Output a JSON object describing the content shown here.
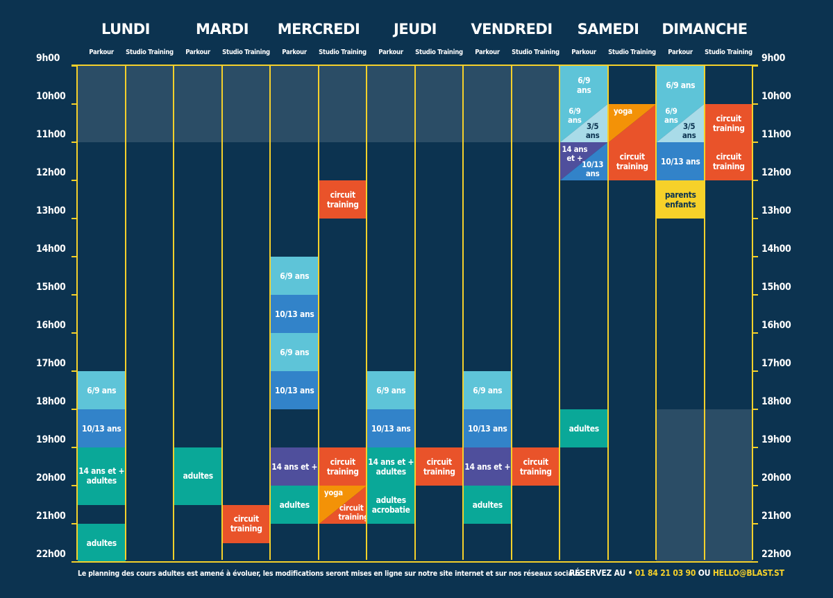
{
  "days": [
    "LUNDI",
    "MARDI",
    "MERCREDI",
    "JEUDI",
    "VENDREDI",
    "SAMEDI",
    "DIMANCHE"
  ],
  "sub_columns": [
    "Parkour",
    "Studio Training"
  ],
  "hours": [
    "9h00",
    "10h00",
    "11h00",
    "12h00",
    "13h00",
    "14h00",
    "15h00",
    "16h00",
    "17h00",
    "18h00",
    "19h00",
    "20h00",
    "21h00",
    "22h00"
  ],
  "colors": {
    "background": "#0c3350",
    "grid": "#f6d12a",
    "light_blue": "#5ec4d8",
    "mid_blue": "#3283c9",
    "purple": "#4f4f9c",
    "teal": "#0aa898",
    "orange_red": "#e9532a",
    "orange": "#f39207",
    "yellow": "#f6d12a"
  },
  "blocks": [
    {
      "col": 0,
      "start": 17,
      "end": 18,
      "label": "6/9 ans",
      "color": "light_blue"
    },
    {
      "col": 0,
      "start": 18,
      "end": 19,
      "label": "10/13 ans",
      "color": "mid_blue"
    },
    {
      "col": 0,
      "start": 19,
      "end": 20.5,
      "label": "14 ans et +\nadultes",
      "color": "teal"
    },
    {
      "col": 0,
      "start": 21,
      "end": 22,
      "label": "adultes",
      "color": "teal"
    },
    {
      "col": 2,
      "start": 19,
      "end": 20.5,
      "label": "adultes",
      "color": "teal"
    },
    {
      "col": 3,
      "start": 20.5,
      "end": 21.5,
      "label": "circuit\ntraining",
      "color": "orange_red"
    },
    {
      "col": 4,
      "start": 14,
      "end": 15,
      "label": "6/9 ans",
      "color": "light_blue"
    },
    {
      "col": 4,
      "start": 15,
      "end": 16,
      "label": "10/13 ans",
      "color": "mid_blue"
    },
    {
      "col": 4,
      "start": 16,
      "end": 17,
      "label": "6/9 ans",
      "color": "light_blue"
    },
    {
      "col": 4,
      "start": 17,
      "end": 18,
      "label": "10/13 ans",
      "color": "mid_blue"
    },
    {
      "col": 4,
      "start": 19,
      "end": 20,
      "label": "14 ans et +",
      "color": "purple"
    },
    {
      "col": 4,
      "start": 20,
      "end": 21,
      "label": "adultes",
      "color": "teal"
    },
    {
      "col": 5,
      "start": 12,
      "end": 13,
      "label": "circuit\ntraining",
      "color": "orange_red"
    },
    {
      "col": 5,
      "start": 19,
      "end": 20,
      "label": "circuit\ntraining",
      "color": "orange_red"
    },
    {
      "col": 6,
      "start": 17,
      "end": 18,
      "label": "6/9 ans",
      "color": "light_blue"
    },
    {
      "col": 6,
      "start": 18,
      "end": 19,
      "label": "10/13 ans",
      "color": "mid_blue"
    },
    {
      "col": 6,
      "start": 19,
      "end": 20,
      "label": "14 ans et +\nadultes",
      "color": "teal"
    },
    {
      "col": 6,
      "start": 20,
      "end": 21,
      "label": "adultes\nacrobatie",
      "color": "teal"
    },
    {
      "col": 7,
      "start": 19,
      "end": 20,
      "label": "circuit\ntraining",
      "color": "orange_red"
    },
    {
      "col": 8,
      "start": 17,
      "end": 18,
      "label": "6/9 ans",
      "color": "light_blue"
    },
    {
      "col": 8,
      "start": 18,
      "end": 19,
      "label": "10/13 ans",
      "color": "mid_blue"
    },
    {
      "col": 8,
      "start": 19,
      "end": 20,
      "label": "14 ans et +",
      "color": "purple"
    },
    {
      "col": 8,
      "start": 20,
      "end": 21,
      "label": "adultes",
      "color": "teal"
    },
    {
      "col": 9,
      "start": 19,
      "end": 20,
      "label": "circuit\ntraining",
      "color": "orange_red"
    },
    {
      "col": 10,
      "start": 9,
      "end": 10,
      "label": "6/9\nans",
      "color": "light_blue"
    },
    {
      "col": 10,
      "start": 18,
      "end": 19,
      "label": "adultes",
      "color": "teal"
    },
    {
      "col": 11,
      "start": 11,
      "end": 12,
      "label": "circuit\ntraining",
      "color": "orange_red"
    },
    {
      "col": 12,
      "start": 9,
      "end": 10,
      "label": "6/9 ans",
      "color": "light_blue"
    },
    {
      "col": 12,
      "start": 11,
      "end": 12,
      "label": "10/13 ans",
      "color": "mid_blue"
    },
    {
      "col": 12,
      "start": 12,
      "end": 13,
      "label": "parents\nenfants",
      "color": "yellow"
    },
    {
      "col": 13,
      "start": 10,
      "end": 11,
      "label": "circuit\ntraining",
      "color": "orange_red"
    },
    {
      "col": 13,
      "start": 11,
      "end": 12,
      "label": "circuit\ntraining",
      "color": "orange_red"
    }
  ],
  "split_blocks": [
    {
      "col": 5,
      "start": 20,
      "end": 21,
      "a_label": "yoga",
      "a_color": "orange",
      "b_label": "circuit\ntraining",
      "b_color": "orange_red"
    },
    {
      "col": 10,
      "start": 10,
      "end": 11,
      "a_label": "6/9\nans",
      "a_color": "light_blue",
      "b_label": "3/5\nans",
      "b_color": "light_blue_alt"
    },
    {
      "col": 10,
      "start": 11,
      "end": 12,
      "a_label": "14 ans\net +",
      "a_color": "purple",
      "b_label": "10/13\nans",
      "b_color": "mid_blue"
    },
    {
      "col": 11,
      "start": 10,
      "end": 11,
      "a_label": "yoga",
      "a_color": "orange",
      "b_label": "",
      "b_color": "orange_red"
    },
    {
      "col": 12,
      "start": 10,
      "end": 11,
      "a_label": "6/9\nans",
      "a_color": "light_blue",
      "b_label": "3/5\nans",
      "b_color": "light_blue_alt"
    }
  ],
  "shaded_ranges": [
    {
      "from_col": 0,
      "to_col": 9,
      "start": 9,
      "end": 11
    },
    {
      "from_col": 12,
      "to_col": 13,
      "start": 18,
      "end": 22
    }
  ],
  "footer": {
    "note": "Le planning des cours adultes est amené à évoluer, les modifications seront mises en ligne sur notre site internet et sur nos réseaux sociaux",
    "reserve_label": "RÉSERVEZ AU • ",
    "phone": "01 84 21 03 90",
    "or": " OU ",
    "email": "HELLO@BLAST.ST"
  }
}
